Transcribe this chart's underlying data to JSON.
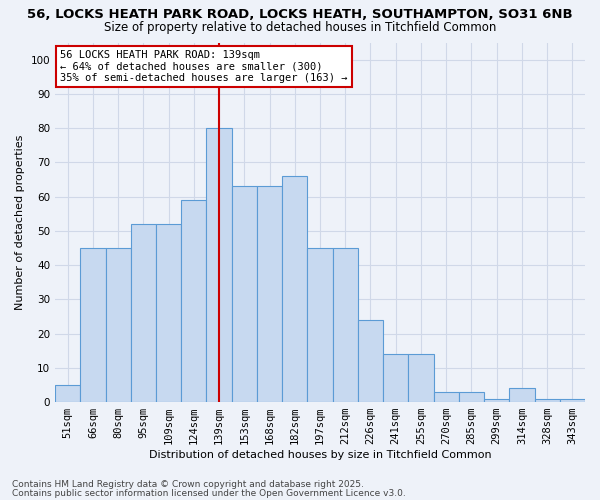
{
  "title_line1": "56, LOCKS HEATH PARK ROAD, LOCKS HEATH, SOUTHAMPTON, SO31 6NB",
  "title_line2": "Size of property relative to detached houses in Titchfield Common",
  "xlabel": "Distribution of detached houses by size in Titchfield Common",
  "ylabel": "Number of detached properties",
  "categories": [
    "51sqm",
    "66sqm",
    "80sqm",
    "95sqm",
    "109sqm",
    "124sqm",
    "139sqm",
    "153sqm",
    "168sqm",
    "182sqm",
    "197sqm",
    "212sqm",
    "226sqm",
    "241sqm",
    "255sqm",
    "270sqm",
    "285sqm",
    "299sqm",
    "314sqm",
    "328sqm",
    "343sqm"
  ],
  "values": [
    5,
    45,
    45,
    52,
    52,
    59,
    80,
    63,
    63,
    66,
    45,
    45,
    24,
    14,
    14,
    3,
    3,
    1,
    4,
    1,
    1
  ],
  "bar_color": "#c7d9f0",
  "bar_edge_color": "#5b9bd5",
  "grid_color": "#d0d8e8",
  "background_color": "#eef2f9",
  "vline_x_idx": 6,
  "vline_color": "#cc0000",
  "annotation_text": "56 LOCKS HEATH PARK ROAD: 139sqm\n← 64% of detached houses are smaller (300)\n35% of semi-detached houses are larger (163) →",
  "annotation_box_color": "#ffffff",
  "annotation_box_edge_color": "#cc0000",
  "ylim": [
    0,
    105
  ],
  "yticks": [
    0,
    10,
    20,
    30,
    40,
    50,
    60,
    70,
    80,
    90,
    100
  ],
  "footer_line1": "Contains HM Land Registry data © Crown copyright and database right 2025.",
  "footer_line2": "Contains public sector information licensed under the Open Government Licence v3.0.",
  "title_fontsize": 9.5,
  "subtitle_fontsize": 8.5,
  "axis_label_fontsize": 8,
  "tick_fontsize": 7.5,
  "annotation_fontsize": 7.5,
  "footer_fontsize": 6.5
}
